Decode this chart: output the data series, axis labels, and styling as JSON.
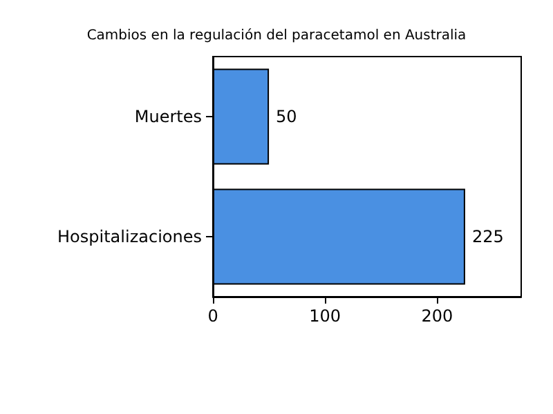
{
  "chart_data": {
    "type": "bar",
    "orientation": "horizontal",
    "title": "Cambios en la regulación del paracetamol en Australia",
    "categories": [
      "Muertes",
      "Hospitalizaciones"
    ],
    "values": [
      50,
      225
    ],
    "color": "#4a90e2",
    "xlim": [
      0,
      275
    ],
    "xticks": [
      0,
      100,
      200
    ],
    "grid": false,
    "data_labels": true
  }
}
